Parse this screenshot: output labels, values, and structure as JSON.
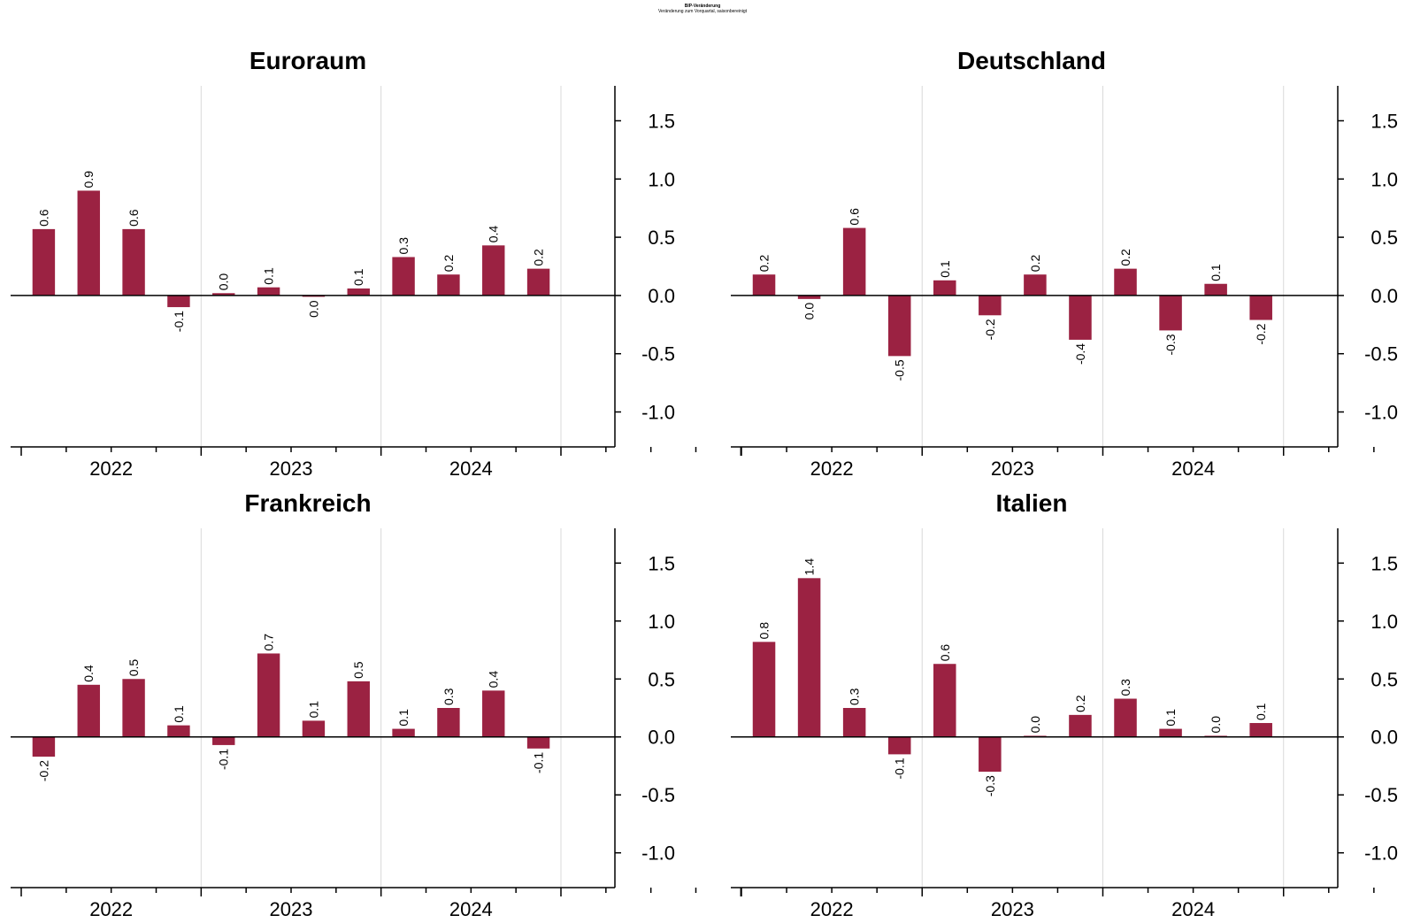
{
  "title": "BIP-Veränderung",
  "subtitle": "Veränderung zum Vorquartal, saisonbereinigt",
  "colors": {
    "bar": "#9b2242",
    "axis": "#000000",
    "grid": "#d9d9d9"
  },
  "chart_data": [
    {
      "type": "bar",
      "title": "Euroraum",
      "categories": [
        "2022",
        "2023",
        "2024"
      ],
      "values": [
        0.57,
        0.9,
        0.57,
        -0.1,
        0.02,
        0.07,
        -0.01,
        0.06,
        0.33,
        0.18,
        0.43,
        0.23
      ],
      "labels": [
        "0.6",
        "0.9",
        "0.6",
        "-0.1",
        "0.0",
        "0.1",
        "0.0",
        "0.1",
        "0.3",
        "0.2",
        "0.4",
        "0.2"
      ],
      "yticks": [
        "1.5",
        "1.0",
        "0.5",
        "0.0",
        "-0.5",
        "-1.0"
      ],
      "ylim": [
        -1.3,
        1.8
      ],
      "grid": true,
      "y_axis_side": "right"
    },
    {
      "type": "bar",
      "title": "Deutschland",
      "categories": [
        "2022",
        "2023",
        "2024"
      ],
      "values": [
        0.18,
        -0.03,
        0.58,
        -0.52,
        0.13,
        -0.17,
        0.18,
        -0.38,
        0.23,
        -0.3,
        0.1,
        -0.21
      ],
      "labels": [
        "0.2",
        "0.0",
        "0.6",
        "-0.5",
        "0.1",
        "-0.2",
        "0.2",
        "-0.4",
        "0.2",
        "-0.3",
        "0.1",
        "-0.2"
      ],
      "yticks": [
        "1.5",
        "1.0",
        "0.5",
        "0.0",
        "-0.5",
        "-1.0"
      ],
      "ylim": [
        -1.3,
        1.8
      ],
      "grid": true,
      "y_axis_side": "right"
    },
    {
      "type": "bar",
      "title": "Frankreich",
      "categories": [
        "2022",
        "2023",
        "2024"
      ],
      "values": [
        -0.17,
        0.45,
        0.5,
        0.1,
        -0.07,
        0.72,
        0.14,
        0.48,
        0.07,
        0.25,
        0.4,
        -0.1
      ],
      "labels": [
        "-0.2",
        "0.4",
        "0.5",
        "0.1",
        "-0.1",
        "0.7",
        "0.1",
        "0.5",
        "0.1",
        "0.3",
        "0.4",
        "-0.1"
      ],
      "yticks": [
        "1.5",
        "1.0",
        "0.5",
        "0.0",
        "-0.5",
        "-1.0"
      ],
      "ylim": [
        -1.3,
        1.8
      ],
      "grid": true,
      "y_axis_side": "right"
    },
    {
      "type": "bar",
      "title": "Italien",
      "categories": [
        "2022",
        "2023",
        "2024"
      ],
      "values": [
        0.82,
        1.37,
        0.25,
        -0.15,
        0.63,
        -0.3,
        0.01,
        0.19,
        0.33,
        0.07,
        0.01,
        0.12
      ],
      "labels": [
        "0.8",
        "1.4",
        "0.3",
        "-0.1",
        "0.6",
        "-0.3",
        "0.0",
        "0.2",
        "0.3",
        "0.1",
        "0.0",
        "0.1"
      ],
      "yticks": [
        "1.5",
        "1.0",
        "0.5",
        "0.0",
        "-0.5",
        "-1.0"
      ],
      "ylim": [
        -1.3,
        1.8
      ],
      "grid": true,
      "y_axis_side": "right"
    }
  ]
}
